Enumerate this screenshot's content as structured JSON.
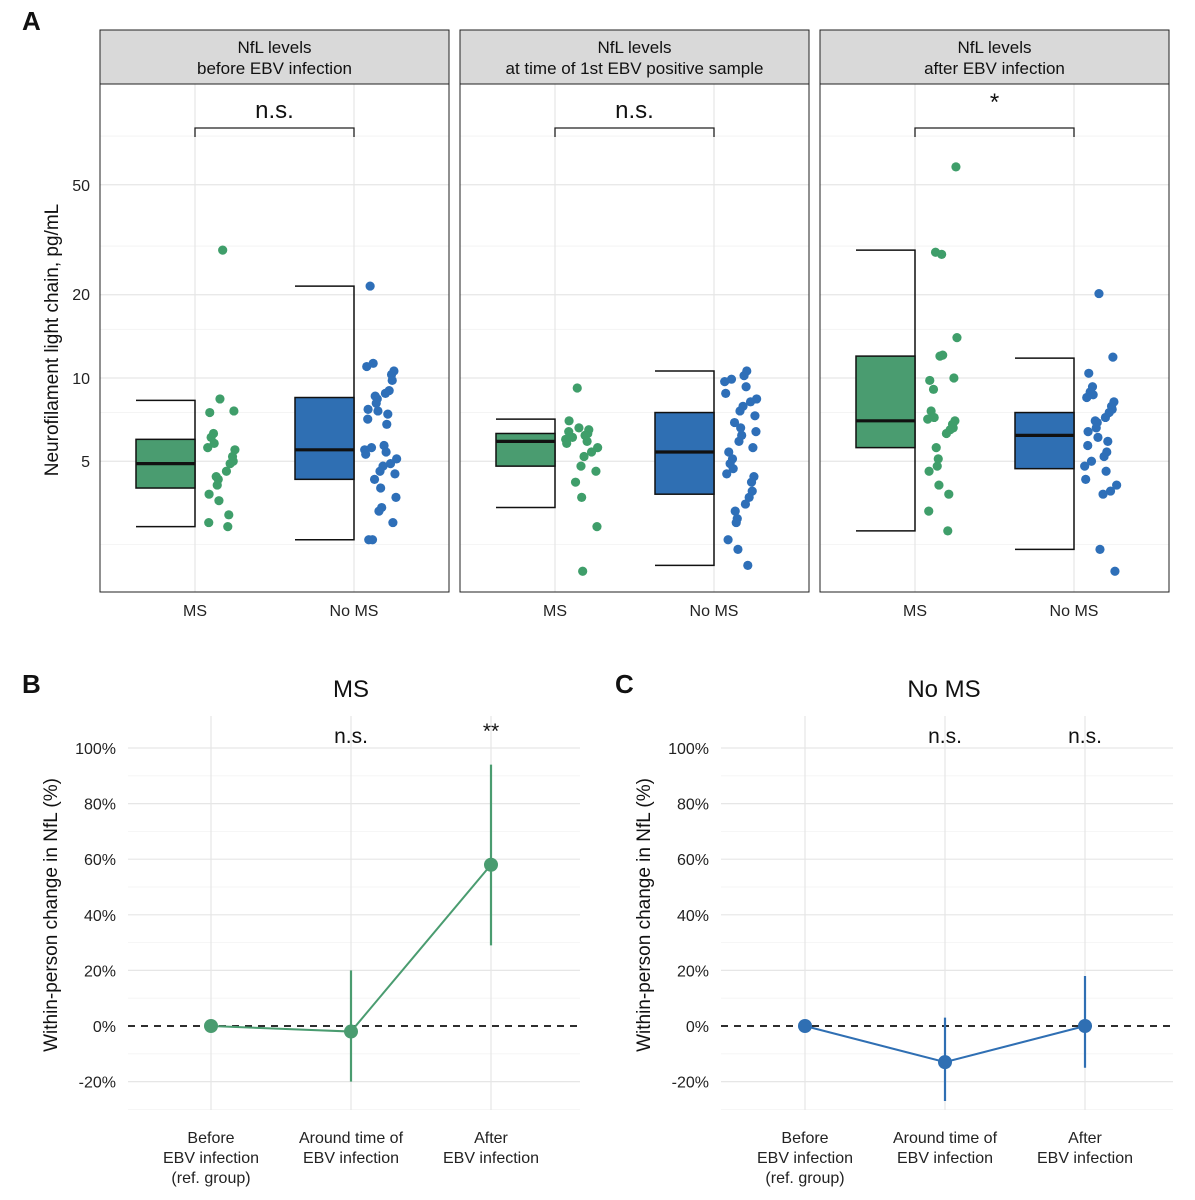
{
  "colors": {
    "ms": "#4a9c70",
    "noms": "#2f6fb3",
    "ms_point": "#3f9e6a",
    "noms_point": "#2e6fb8",
    "strip_bg": "#d9d9d9",
    "grid": "#ebebeb"
  },
  "panel_a": {
    "letter": "A",
    "y_title": "Neurofilament light chain, pg/mL",
    "y_ticks": [
      "5",
      "10",
      "20",
      "50"
    ],
    "x_tick_labels": [
      "MS",
      "No MS"
    ],
    "facets": [
      {
        "strip": [
          "NfL levels",
          "before EBV infection"
        ],
        "significance": "n.s.",
        "groups": [
          {
            "label": "MS",
            "box": {
              "lower_whisker": 2.9,
              "q1": 4.0,
              "median": 4.9,
              "q3": 6.0,
              "upper_whisker": 8.3
            },
            "points": [
              29,
              8.4,
              7.6,
              7.5,
              6.3,
              6.1,
              5.8,
              5.6,
              5.5,
              5.2,
              5.0,
              4.9,
              4.6,
              4.4,
              4.3,
              4.1,
              3.8,
              3.6,
              3.2,
              3.0,
              2.9
            ]
          },
          {
            "label": "No MS",
            "box": {
              "lower_whisker": 2.6,
              "q1": 4.3,
              "median": 5.5,
              "q3": 8.5,
              "upper_whisker": 21.5
            },
            "points": [
              21.5,
              11.3,
              11.0,
              10.6,
              10.3,
              9.8,
              9.0,
              8.8,
              8.6,
              8.4,
              8.1,
              7.7,
              7.6,
              7.4,
              7.1,
              6.8,
              5.7,
              5.6,
              5.5,
              5.4,
              5.3,
              5.1,
              4.9,
              4.8,
              4.6,
              4.5,
              4.3,
              4.0,
              3.7,
              3.4,
              3.3,
              3.0,
              2.6,
              2.6
            ]
          }
        ]
      },
      {
        "strip": [
          "NfL levels",
          "at time of 1st EBV positive sample"
        ],
        "significance": "n.s.",
        "groups": [
          {
            "label": "MS",
            "box": {
              "lower_whisker": 3.4,
              "q1": 4.8,
              "median": 5.9,
              "q3": 6.3,
              "upper_whisker": 7.1
            },
            "points": [
              9.2,
              7.0,
              6.6,
              6.5,
              6.4,
              6.3,
              6.2,
              6.1,
              6.0,
              5.9,
              5.8,
              5.6,
              5.4,
              5.2,
              4.8,
              4.6,
              4.2,
              3.7,
              2.9,
              2.0
            ]
          },
          {
            "label": "No MS",
            "box": {
              "lower_whisker": 2.1,
              "q1": 3.8,
              "median": 5.4,
              "q3": 7.5,
              "upper_whisker": 10.6
            },
            "points": [
              10.6,
              10.2,
              9.9,
              9.7,
              9.3,
              8.8,
              8.4,
              8.2,
              7.9,
              7.6,
              7.3,
              6.9,
              6.6,
              6.4,
              6.2,
              5.9,
              5.6,
              5.4,
              5.1,
              4.9,
              4.7,
              4.5,
              4.4,
              4.2,
              3.9,
              3.7,
              3.5,
              3.3,
              3.1,
              3.0,
              2.6,
              2.4,
              2.1
            ]
          }
        ]
      },
      {
        "strip": [
          "NfL levels",
          "after EBV infection"
        ],
        "significance": "*",
        "groups": [
          {
            "label": "MS",
            "box": {
              "lower_whisker": 2.8,
              "q1": 5.6,
              "median": 7.0,
              "q3": 12.0,
              "upper_whisker": 29.0
            },
            "points": [
              58,
              28.5,
              28.0,
              14.0,
              12.1,
              12.0,
              10.0,
              9.8,
              9.1,
              7.6,
              7.2,
              7.1,
              7.0,
              6.8,
              6.6,
              6.5,
              6.3,
              5.6,
              5.1,
              4.8,
              4.6,
              4.1,
              3.8,
              3.3,
              2.8
            ]
          },
          {
            "label": "No MS",
            "box": {
              "lower_whisker": 2.4,
              "q1": 4.7,
              "median": 6.2,
              "q3": 7.5,
              "upper_whisker": 11.8
            },
            "points": [
              20.2,
              11.9,
              10.4,
              9.3,
              8.9,
              8.7,
              8.5,
              8.2,
              7.9,
              7.7,
              7.5,
              7.2,
              7.0,
              6.9,
              6.6,
              6.4,
              6.1,
              5.9,
              5.7,
              5.4,
              5.2,
              5.0,
              4.8,
              4.6,
              4.3,
              4.1,
              3.9,
              3.8,
              2.4,
              2.0
            ]
          }
        ]
      }
    ]
  },
  "panel_b": {
    "letter": "B",
    "title": "MS",
    "y_title": "Within-person change in NfL (%)",
    "y_ticks": [
      "100%",
      "80%",
      "60%",
      "40%",
      "20%",
      "0%",
      "-20%"
    ],
    "x_categories": [
      [
        "Before",
        "EBV infection",
        "(ref. group)"
      ],
      [
        "Around time of",
        "EBV infection"
      ],
      [
        "After",
        "EBV infection"
      ]
    ],
    "annotations": [
      "",
      "n.s.",
      "**"
    ],
    "points": [
      {
        "x": 0,
        "y": 0,
        "lo": 0,
        "hi": 0
      },
      {
        "x": 1,
        "y": -2,
        "lo": -20,
        "hi": 20
      },
      {
        "x": 2,
        "y": 58,
        "lo": 29,
        "hi": 94
      }
    ]
  },
  "panel_c": {
    "letter": "C",
    "title": "No MS",
    "y_title": "Within-person change in NfL (%)",
    "y_ticks": [
      "100%",
      "80%",
      "60%",
      "40%",
      "20%",
      "0%",
      "-20%"
    ],
    "x_categories": [
      [
        "Before",
        "EBV infection",
        "(ref. group)"
      ],
      [
        "Around time of",
        "EBV infection"
      ],
      [
        "After",
        "EBV infection"
      ]
    ],
    "annotations": [
      "",
      "n.s.",
      "n.s."
    ],
    "points": [
      {
        "x": 0,
        "y": 0,
        "lo": 0,
        "hi": 0
      },
      {
        "x": 1,
        "y": -13,
        "lo": -27,
        "hi": 3
      },
      {
        "x": 2,
        "y": 0,
        "lo": -15,
        "hi": 18
      }
    ]
  },
  "chart_data": [
    {
      "type": "box",
      "title": "",
      "ylabel": "Neurofilament light chain, pg/mL",
      "y_scale": "log",
      "ylim": [
        1.75,
        95
      ],
      "facets": [
        "NfL levels before EBV infection",
        "NfL levels at time of 1st EBV positive sample",
        "NfL levels after EBV infection"
      ],
      "categories": [
        "MS",
        "No MS"
      ],
      "significance": [
        "n.s.",
        "n.s.",
        "*"
      ]
    },
    {
      "type": "line",
      "title": "MS",
      "ylabel": "Within-person change in NfL (%)",
      "categories": [
        "Before EBV infection (ref. group)",
        "Around time of EBV infection",
        "After EBV infection"
      ],
      "values": [
        0,
        -2,
        58
      ],
      "ci_low": [
        0,
        -20,
        29
      ],
      "ci_high": [
        0,
        20,
        94
      ],
      "ylim": [
        -30,
        110
      ]
    },
    {
      "type": "line",
      "title": "No MS",
      "ylabel": "Within-person change in NfL (%)",
      "categories": [
        "Before EBV infection (ref. group)",
        "Around time of EBV infection",
        "After EBV infection"
      ],
      "values": [
        0,
        -13,
        0
      ],
      "ci_low": [
        0,
        -27,
        -15
      ],
      "ci_high": [
        0,
        3,
        18
      ],
      "ylim": [
        -30,
        110
      ]
    }
  ]
}
